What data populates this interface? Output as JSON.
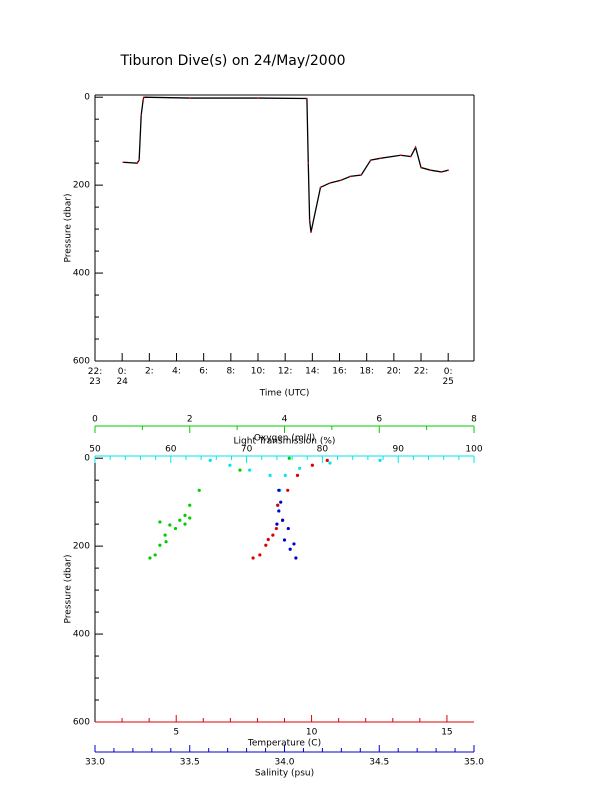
{
  "chart_data": [
    {
      "type": "line",
      "title": "Tiburon Dive(s) on 24/May/2000",
      "xlabel": "Time (UTC)",
      "ylabel": "Pressure (dbar)",
      "color": "#000000",
      "point_color": "#ff0000",
      "x": [
        0.07,
        1.1,
        1.25,
        1.4,
        1.55,
        1.6,
        5,
        10,
        13.6,
        13.7,
        13.8,
        13.9,
        14.6,
        15.3,
        16.1,
        16.8,
        17.6,
        18.3,
        19.0,
        20.5,
        21.25,
        21.6,
        22.0,
        22.7,
        23.5,
        24.0
      ],
      "values": [
        148,
        150,
        143,
        41,
        5,
        0,
        2,
        2,
        3,
        150,
        280,
        307,
        205,
        195,
        189,
        180,
        177,
        143,
        139,
        132,
        135,
        114,
        160,
        166,
        170,
        166
      ],
      "xlim": [
        -2,
        25.9
      ],
      "xticks": [
        {
          "value": -2,
          "label": "22:\n23"
        },
        {
          "value": 0,
          "label": "0:\n24"
        },
        {
          "value": 2,
          "label": "2:"
        },
        {
          "value": 4,
          "label": "4:"
        },
        {
          "value": 6,
          "label": "6:"
        },
        {
          "value": 8,
          "label": "8:"
        },
        {
          "value": 10,
          "label": "10:"
        },
        {
          "value": 12,
          "label": "12:"
        },
        {
          "value": 14,
          "label": "14:"
        },
        {
          "value": 16,
          "label": "16:"
        },
        {
          "value": 18,
          "label": "18:"
        },
        {
          "value": 20,
          "label": "20:"
        },
        {
          "value": 22,
          "label": "22:"
        },
        {
          "value": 24,
          "label": "0:\n25"
        }
      ],
      "ylim": [
        -5,
        600
      ],
      "reverse_y": true,
      "yticks": [
        0,
        200,
        400,
        600
      ],
      "yminor": [
        50,
        100,
        150,
        250,
        300,
        350,
        450,
        500,
        550
      ]
    },
    {
      "type": "scatter",
      "ylabel": "Pressure (dbar)",
      "ylim": [
        -5,
        600
      ],
      "reverse_y": true,
      "yticks": [
        0,
        200,
        400,
        600
      ],
      "yminor": [
        50,
        100,
        150,
        250,
        300,
        350,
        450,
        500,
        550
      ],
      "axes": [
        {
          "label": "Light Transmission (%)",
          "color": "#00e5ee",
          "side": "top",
          "lim": [
            50,
            100
          ],
          "ticks": [
            50,
            60,
            70,
            80,
            90,
            100
          ],
          "minor": [
            52,
            54,
            56,
            58,
            62,
            64,
            66,
            68,
            72,
            74,
            76,
            78,
            82,
            84,
            86,
            88,
            92,
            94,
            96,
            98
          ]
        },
        {
          "label": "Oxygen (ml/l)",
          "color": "#00cc00",
          "side": "top",
          "lim": [
            0,
            8
          ],
          "ticks": [
            0,
            2,
            4,
            6,
            8
          ],
          "minor": [
            1,
            3,
            5,
            7
          ]
        },
        {
          "label": "Temperature (C)",
          "color": "#dd0000",
          "side": "bottom",
          "lim": [
            2,
            16
          ],
          "ticks": [
            5,
            10,
            15
          ],
          "minor": [
            3,
            4,
            6,
            7,
            8,
            9,
            11,
            12,
            13,
            14
          ]
        },
        {
          "label": "Salinity (psu)",
          "color": "#0000cc",
          "side": "bottom",
          "lim": [
            33,
            35
          ],
          "ticks": [
            {
              "value": 33,
              "label": "33.0"
            },
            33.5,
            {
              "value": 34,
              "label": "34.0"
            },
            34.5,
            {
              "value": 35,
              "label": "35.0"
            }
          ],
          "minor": [
            33.1,
            33.2,
            33.3,
            33.4,
            33.6,
            33.7,
            33.8,
            33.9,
            34.1,
            34.2,
            34.3,
            34.4,
            34.6,
            34.7,
            34.8,
            34.9
          ]
        }
      ],
      "series": [
        {
          "axis": 1,
          "x": [
            4.1,
            3.06,
            2.2,
            2.0,
            1.9,
            1.79,
            1.58,
            1.48,
            1.37,
            1.27,
            1.16,
            2.0,
            1.37,
            1.7,
            1.9,
            1.5
          ],
          "values": [
            0,
            27,
            73,
            107,
            130,
            141,
            152,
            175,
            198,
            220,
            227,
            136,
            145,
            160,
            150,
            190
          ]
        },
        {
          "axis": 0,
          "x": [
            65.2,
            67.8,
            70.4,
            73.1,
            74.4,
            74.1,
            75.1,
            77,
            81,
            87.6
          ],
          "values": [
            5,
            16,
            27,
            39,
            73,
            107,
            39,
            23,
            11,
            5
          ]
        },
        {
          "axis": 2,
          "x": [
            10.58,
            10.03,
            9.48,
            9.12,
            8.75,
            8.93,
            8.57,
            8.31,
            8.09,
            7.84,
            8.7,
            8.4
          ],
          "values": [
            5,
            16,
            39,
            73,
            107,
            141,
            175,
            198,
            220,
            227,
            160,
            185
          ]
        },
        {
          "axis": 3,
          "x": [
            33.97,
            33.98,
            33.97,
            33.99,
            34.0,
            34.03,
            34.06,
            34.02,
            33.96,
            34.05
          ],
          "values": [
            73,
            100,
            120,
            141,
            186,
            207,
            227,
            160,
            150,
            195
          ]
        }
      ]
    }
  ]
}
